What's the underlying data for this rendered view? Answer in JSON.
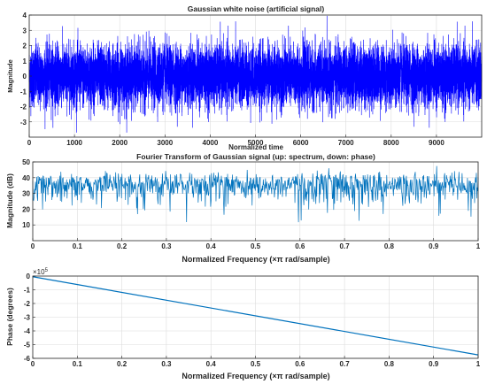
{
  "chart_data": [
    {
      "type": "line",
      "title": "Gaussian white noise (artificial signal)",
      "xlabel": "Normalized time",
      "ylabel": "Magnitude",
      "xlim": [
        0,
        10000
      ],
      "ylim": [
        -4,
        4
      ],
      "xticks": [
        0,
        1000,
        2000,
        3000,
        4000,
        5000,
        6000,
        7000,
        8000,
        9000
      ],
      "yticks": [
        -3,
        -2,
        -1,
        0,
        1,
        2,
        3,
        4
      ],
      "grid": true,
      "line_color": "#0000ff",
      "series": [
        {
          "signal": "gaussian",
          "n": 10000,
          "mean": 0,
          "std": 1
        }
      ]
    },
    {
      "type": "line",
      "title": "Fourier Transform of Gaussian signal (up: spectrum, down: phase)",
      "xlabel": "Normalized Frequency  (×π rad/sample)",
      "ylabel": "Magnitude (dB)",
      "xlim": [
        0,
        1
      ],
      "ylim": [
        0,
        50
      ],
      "xticks": [
        "0",
        "0.1",
        "0.2",
        "0.3",
        "0.4",
        "0.5",
        "0.6",
        "0.7",
        "0.8",
        "0.9",
        "1"
      ],
      "yticks": [
        10,
        20,
        30,
        40,
        50
      ],
      "grid": true,
      "line_color": "#0072bd",
      "series": [
        {
          "signal": "spectrum",
          "n": 1000,
          "mean_db": 37,
          "typical_min_db": 25,
          "typical_max_db": 47
        }
      ]
    },
    {
      "type": "line",
      "title": "",
      "xlabel": "Normalized Frequency  (×π rad/sample)",
      "ylabel": "Phase (degrees)",
      "y_exponent_label": "×10",
      "y_exponent": "5",
      "xlim": [
        0,
        1
      ],
      "ylim": [
        -6,
        0
      ],
      "xticks": [
        "0",
        "0.1",
        "0.2",
        "0.3",
        "0.4",
        "0.5",
        "0.6",
        "0.7",
        "0.8",
        "0.9",
        "1"
      ],
      "yticks": [
        0,
        -1,
        -2,
        -3,
        -4,
        -5,
        -6
      ],
      "grid": true,
      "line_color": "#0072bd",
      "series": [
        {
          "x": [
            0,
            1
          ],
          "y": [
            -0.05,
            -5.75
          ]
        }
      ]
    }
  ]
}
